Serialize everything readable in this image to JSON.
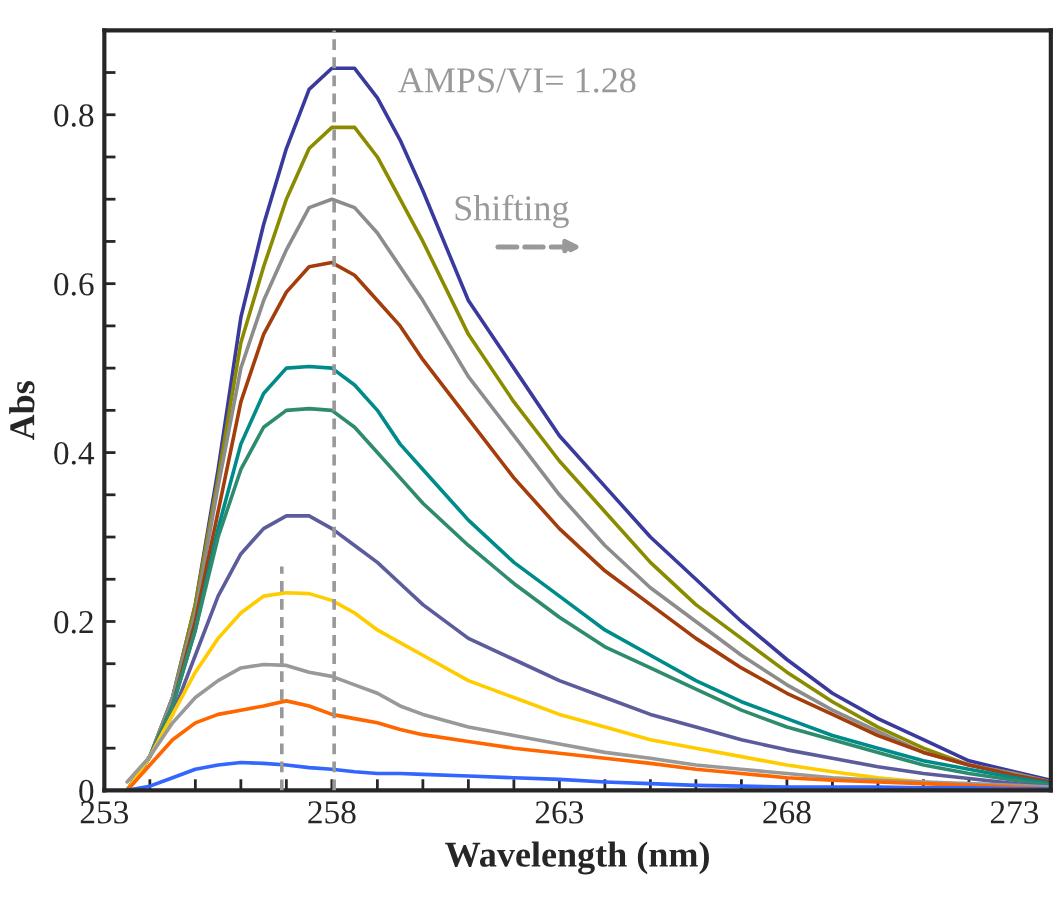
{
  "chart_data": {
    "type": "line",
    "xlabel": "Wavelength (nm)",
    "ylabel": "Abs",
    "x": [
      253.5,
      254,
      254.5,
      255,
      255.5,
      256,
      256.5,
      257,
      257.5,
      258,
      258.5,
      259,
      259.5,
      260,
      261,
      262,
      263,
      264,
      265,
      266,
      267,
      268,
      269,
      270,
      271,
      272,
      273,
      273.8
    ],
    "series": [
      {
        "color": "#3a3a9e",
        "values": [
          0,
          0.04,
          0.11,
          0.22,
          0.38,
          0.56,
          0.67,
          0.76,
          0.83,
          0.855,
          0.855,
          0.82,
          0.77,
          0.71,
          0.58,
          0.5,
          0.42,
          0.36,
          0.3,
          0.25,
          0.2,
          0.155,
          0.115,
          0.085,
          0.06,
          0.035,
          0.022,
          0.012
        ]
      },
      {
        "color": "#8b8b00",
        "values": [
          0,
          0.04,
          0.11,
          0.22,
          0.37,
          0.53,
          0.62,
          0.7,
          0.76,
          0.785,
          0.785,
          0.75,
          0.7,
          0.65,
          0.54,
          0.46,
          0.39,
          0.33,
          0.27,
          0.22,
          0.18,
          0.14,
          0.105,
          0.075,
          0.05,
          0.03,
          0.02,
          0.01
        ]
      },
      {
        "color": "#8c8c8c",
        "values": [
          0,
          0.04,
          0.11,
          0.21,
          0.36,
          0.5,
          0.58,
          0.64,
          0.69,
          0.7,
          0.69,
          0.66,
          0.62,
          0.58,
          0.49,
          0.42,
          0.35,
          0.29,
          0.24,
          0.2,
          0.16,
          0.125,
          0.095,
          0.07,
          0.045,
          0.03,
          0.02,
          0.01
        ]
      },
      {
        "color": "#a33e0c",
        "values": [
          0,
          0.04,
          0.1,
          0.2,
          0.33,
          0.46,
          0.54,
          0.59,
          0.62,
          0.625,
          0.61,
          0.58,
          0.55,
          0.51,
          0.44,
          0.37,
          0.31,
          0.26,
          0.22,
          0.18,
          0.145,
          0.115,
          0.09,
          0.065,
          0.045,
          0.03,
          0.018,
          0.01
        ]
      },
      {
        "color": "#008b8b",
        "values": [
          0,
          0.04,
          0.1,
          0.19,
          0.31,
          0.41,
          0.47,
          0.5,
          0.502,
          0.5,
          0.48,
          0.45,
          0.41,
          0.38,
          0.32,
          0.27,
          0.23,
          0.19,
          0.16,
          0.13,
          0.105,
          0.085,
          0.065,
          0.05,
          0.035,
          0.025,
          0.015,
          0.008
        ]
      },
      {
        "color": "#2e8b6e",
        "values": [
          0,
          0.04,
          0.1,
          0.19,
          0.3,
          0.38,
          0.43,
          0.45,
          0.452,
          0.45,
          0.43,
          0.4,
          0.37,
          0.34,
          0.29,
          0.245,
          0.205,
          0.17,
          0.145,
          0.12,
          0.095,
          0.075,
          0.06,
          0.045,
          0.03,
          0.02,
          0.012,
          0.006
        ]
      },
      {
        "color": "#5c5c9c",
        "values": [
          0,
          0.04,
          0.09,
          0.16,
          0.23,
          0.28,
          0.31,
          0.325,
          0.325,
          0.31,
          0.29,
          0.27,
          0.245,
          0.22,
          0.18,
          0.155,
          0.13,
          0.11,
          0.09,
          0.075,
          0.06,
          0.048,
          0.038,
          0.028,
          0.02,
          0.014,
          0.008,
          0.004
        ]
      },
      {
        "color": "#ffcc00",
        "values": [
          0,
          0.04,
          0.09,
          0.14,
          0.18,
          0.21,
          0.23,
          0.234,
          0.233,
          0.225,
          0.21,
          0.19,
          0.175,
          0.16,
          0.13,
          0.11,
          0.09,
          0.075,
          0.06,
          0.05,
          0.04,
          0.03,
          0.022,
          0.015,
          0.01,
          0.006,
          null,
          null
        ]
      },
      {
        "color": "#999999",
        "values": [
          0.01,
          0.04,
          0.08,
          0.11,
          0.13,
          0.145,
          0.149,
          0.148,
          0.14,
          0.135,
          0.125,
          0.115,
          0.1,
          0.09,
          0.075,
          0.065,
          0.055,
          0.045,
          0.038,
          0.03,
          0.025,
          0.02,
          0.015,
          0.012,
          0.01,
          0.008,
          0.006,
          0.004
        ]
      },
      {
        "color": "#ff6600",
        "values": [
          0,
          0.03,
          0.06,
          0.08,
          0.09,
          0.095,
          0.1,
          0.106,
          0.1,
          0.09,
          0.085,
          0.08,
          0.072,
          0.066,
          0.058,
          0.05,
          0.044,
          0.038,
          0.032,
          0.025,
          0.02,
          0.015,
          0.012,
          0.01,
          0.008,
          0.006,
          0.004,
          0.002
        ]
      },
      {
        "color": "#3366ff",
        "values": [
          0,
          0.005,
          0.015,
          0.025,
          0.03,
          0.033,
          0.032,
          0.03,
          0.027,
          0.025,
          0.022,
          0.02,
          0.02,
          0.019,
          0.017,
          0.015,
          0.013,
          0.01,
          0.008,
          0.006,
          0.005,
          0.004,
          0.004,
          0.004,
          0.003,
          0.003,
          0.002,
          0.002
        ]
      },
      {
        "color": "#999999",
        "line_style": "dashed",
        "x": [
          256.9,
          256.9
        ],
        "values": [
          0,
          0.265
        ]
      }
    ],
    "ref_lines": [
      {
        "axis": "x",
        "value": 258.05,
        "color": "#999999",
        "line_style": "dashed"
      }
    ],
    "annotations": [
      "AMPS/VI= 1.28",
      "Shifting"
    ],
    "xlim": [
      253,
      273.8
    ],
    "ylim": [
      0,
      0.9
    ],
    "xticks": [
      253,
      {
        "value": 254,
        "label": null
      },
      {
        "value": 255,
        "label": null
      },
      {
        "value": 256,
        "label": null
      },
      {
        "value": 257,
        "label": null
      },
      258,
      {
        "value": 259,
        "label": null
      },
      {
        "value": 260,
        "label": null
      },
      {
        "value": 261,
        "label": null
      },
      {
        "value": 262,
        "label": null
      },
      263,
      {
        "value": 264,
        "label": null
      },
      {
        "value": 265,
        "label": null
      },
      {
        "value": 266,
        "label": null
      },
      {
        "value": 267,
        "label": null
      },
      268,
      {
        "value": 269,
        "label": null
      },
      {
        "value": 270,
        "label": null
      },
      {
        "value": 271,
        "label": null
      },
      {
        "value": 272,
        "label": null
      },
      273
    ],
    "yticks": [
      0,
      {
        "value": 0.05,
        "label": null
      },
      {
        "value": 0.1,
        "label": null
      },
      {
        "value": 0.15,
        "label": null
      },
      0.2,
      {
        "value": 0.25,
        "label": null
      },
      {
        "value": 0.3,
        "label": null
      },
      {
        "value": 0.35,
        "label": null
      },
      0.4,
      {
        "value": 0.45,
        "label": null
      },
      {
        "value": 0.5,
        "label": null
      },
      {
        "value": 0.55,
        "label": null
      },
      0.6,
      {
        "value": 0.65,
        "label": null
      },
      {
        "value": 0.7,
        "label": null
      },
      {
        "value": 0.75,
        "label": null
      },
      0.8,
      {
        "value": 0.85,
        "label": null
      }
    ],
    "grid": false,
    "legend": false
  }
}
